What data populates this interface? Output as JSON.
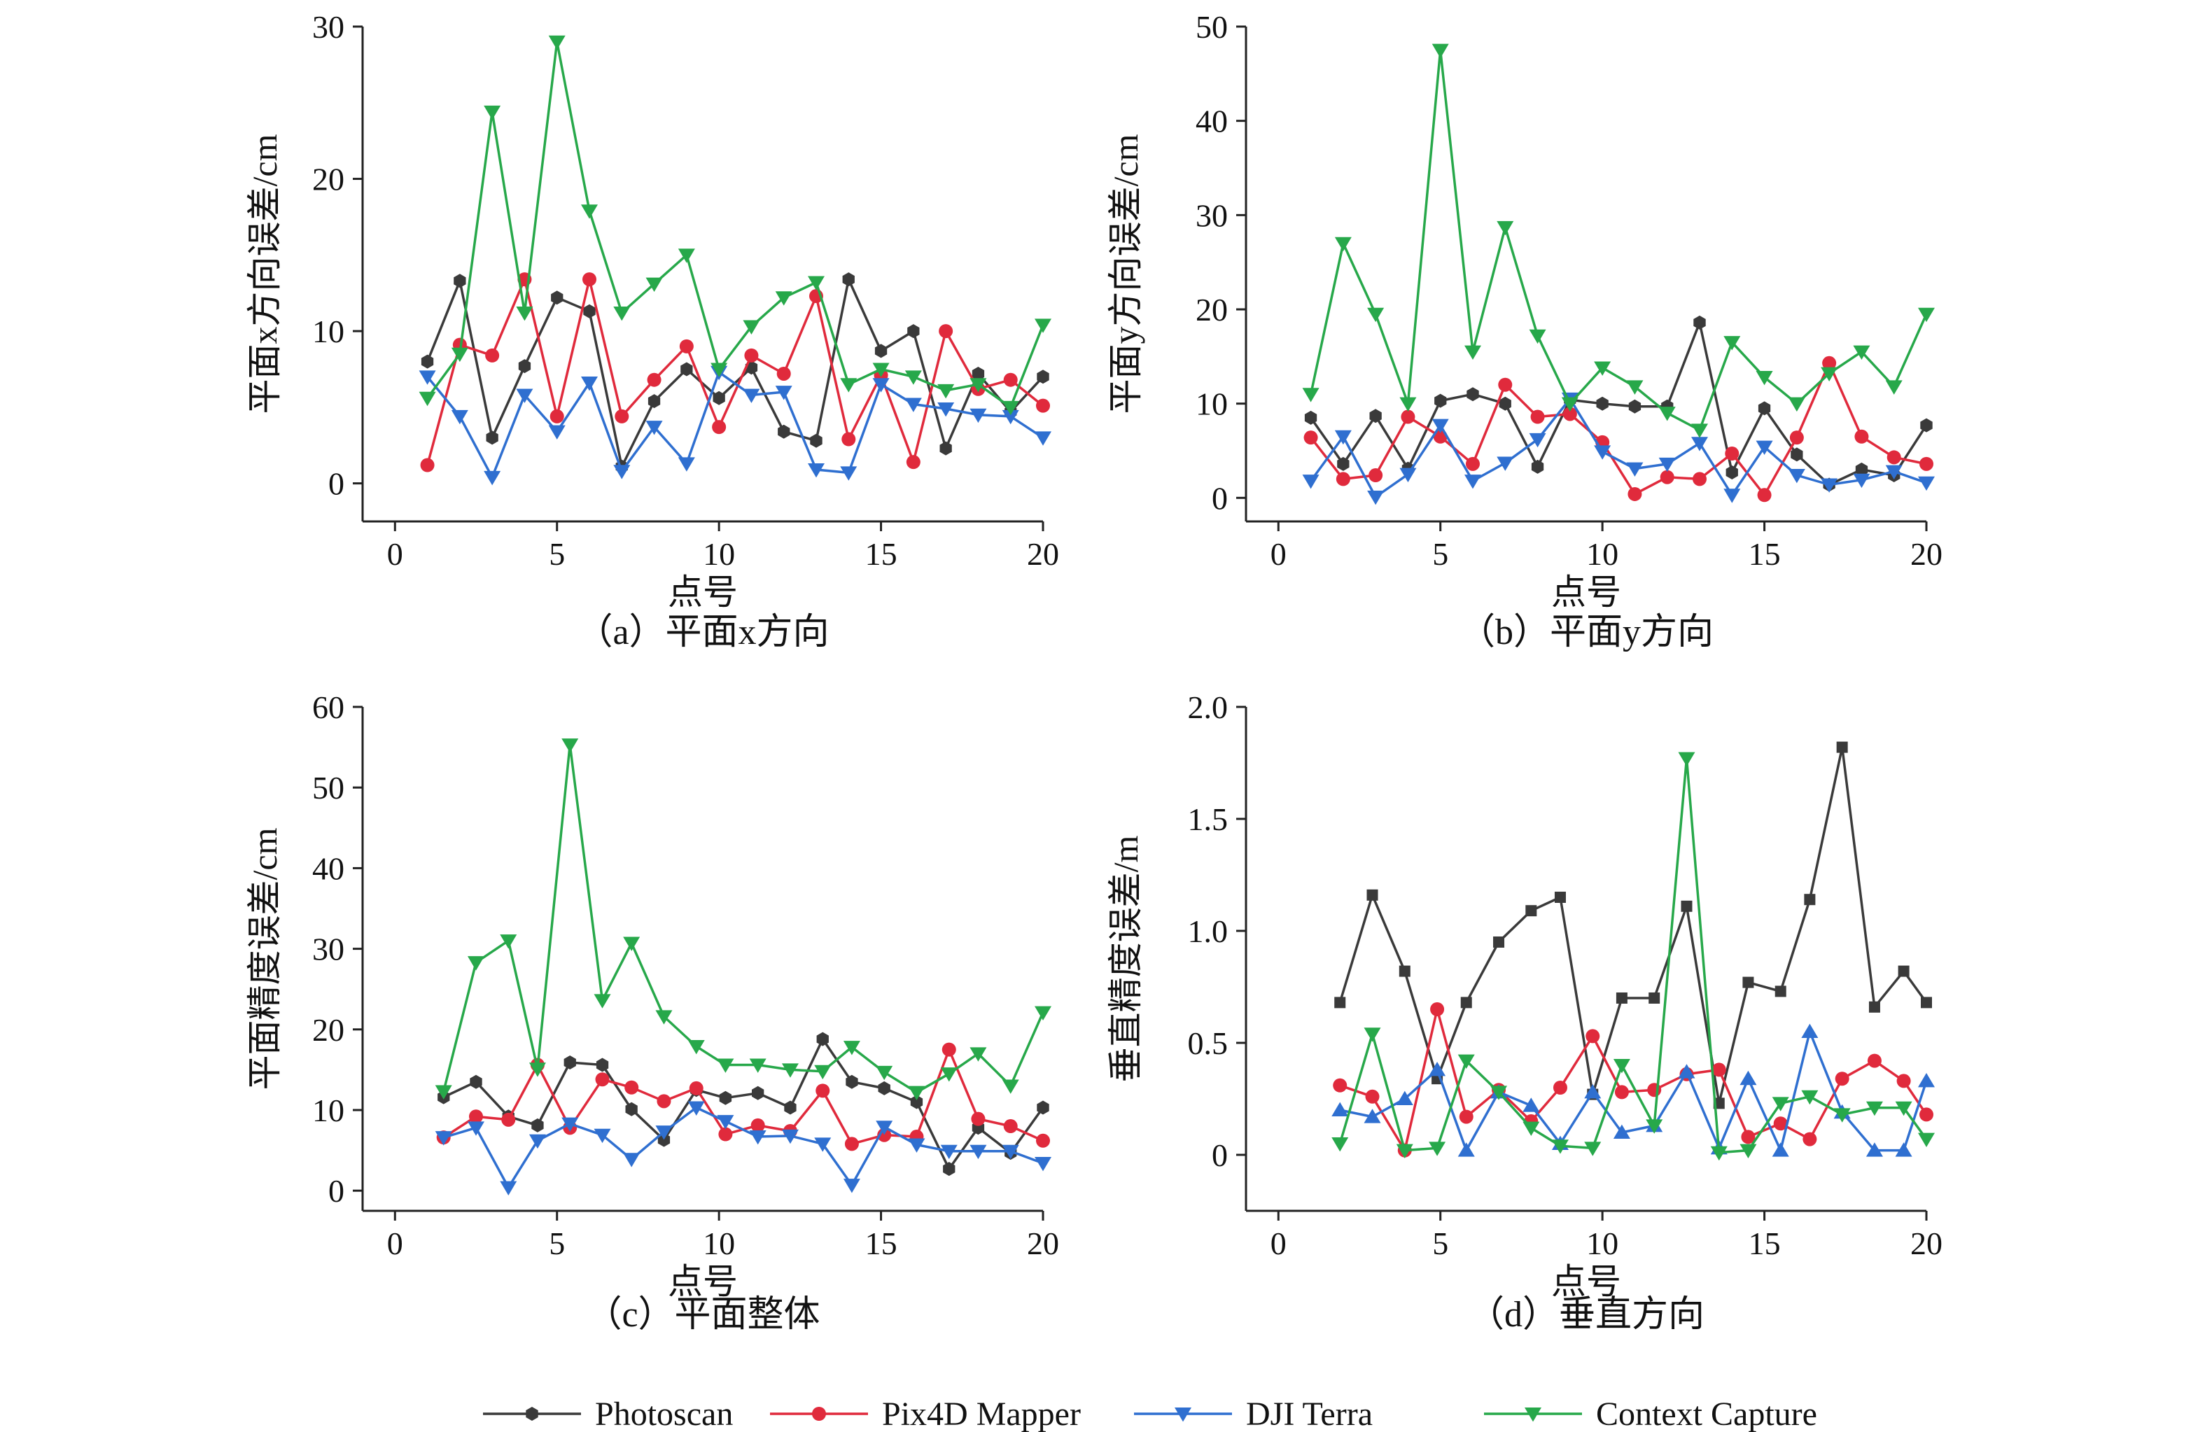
{
  "chart_data": [
    {
      "type": "line",
      "caption": "（a）平面x方向",
      "xlabel": "点号",
      "ylabel": "平面x方向误差/cm",
      "xlim": [
        -1,
        20
      ],
      "ylim": [
        -2.5,
        30
      ],
      "xticks": [
        0,
        5,
        10,
        15,
        20
      ],
      "yticks": [
        0,
        10,
        20,
        30
      ],
      "x": [
        1,
        2,
        3,
        4,
        5,
        6,
        7,
        8,
        9,
        10,
        11,
        12,
        13,
        14,
        15,
        16,
        17,
        18,
        19,
        20
      ],
      "series": [
        {
          "name": "Photoscan",
          "values": [
            8.0,
            13.3,
            3.0,
            7.7,
            12.2,
            11.3,
            1.1,
            5.4,
            7.5,
            5.6,
            7.6,
            3.4,
            2.8,
            13.4,
            8.7,
            10.0,
            2.3,
            7.2,
            4.7,
            7.0
          ]
        },
        {
          "name": "Pix4D Mapper",
          "values": [
            1.2,
            9.1,
            8.4,
            13.4,
            4.4,
            13.4,
            4.4,
            6.8,
            9.0,
            3.7,
            8.4,
            7.2,
            12.3,
            2.9,
            7.1,
            1.4,
            10.0,
            6.2,
            6.8,
            5.1
          ]
        },
        {
          "name": "DJI Terra",
          "values": [
            7.0,
            4.4,
            0.4,
            5.8,
            3.4,
            6.6,
            0.8,
            3.7,
            1.3,
            7.3,
            5.8,
            6.0,
            0.9,
            0.7,
            6.5,
            5.2,
            4.9,
            4.5,
            4.4,
            3.0
          ]
        },
        {
          "name": "Context Capture",
          "values": [
            5.6,
            8.5,
            24.4,
            11.2,
            29.0,
            17.9,
            11.2,
            13.1,
            15.0,
            7.5,
            10.3,
            12.2,
            13.2,
            6.5,
            7.5,
            7.0,
            6.1,
            6.5,
            5.0,
            10.4
          ]
        }
      ]
    },
    {
      "type": "line",
      "caption": "（b）平面y方向",
      "xlabel": "点号",
      "ylabel": "平面y方向误差/cm",
      "xlim": [
        -1,
        20
      ],
      "ylim": [
        -2.5,
        50
      ],
      "xticks": [
        0,
        5,
        10,
        15,
        20
      ],
      "yticks": [
        0,
        10,
        20,
        30,
        40,
        50
      ],
      "x": [
        1,
        2,
        3,
        4,
        5,
        6,
        7,
        8,
        9,
        10,
        11,
        12,
        13,
        14,
        15,
        16,
        17,
        18,
        19,
        20
      ],
      "series": [
        {
          "name": "Photoscan",
          "values": [
            8.5,
            3.6,
            8.7,
            3.1,
            10.3,
            11.0,
            10.0,
            3.3,
            10.4,
            10.0,
            9.7,
            9.7,
            18.6,
            2.7,
            9.5,
            4.6,
            1.4,
            3.0,
            2.4,
            7.7
          ]
        },
        {
          "name": "Pix4D Mapper",
          "values": [
            6.4,
            2.0,
            2.4,
            8.6,
            6.5,
            3.6,
            12.0,
            8.6,
            8.9,
            5.9,
            0.4,
            2.2,
            2.0,
            4.7,
            0.3,
            6.4,
            14.3,
            6.5,
            4.3,
            3.6
          ]
        },
        {
          "name": "DJI Terra",
          "values": [
            1.8,
            6.5,
            0.1,
            2.5,
            7.7,
            1.8,
            3.7,
            6.2,
            10.5,
            4.9,
            3.1,
            3.6,
            5.8,
            0.3,
            5.4,
            2.4,
            1.4,
            1.9,
            2.8,
            1.6
          ]
        },
        {
          "name": "Context Capture",
          "values": [
            11.0,
            27.0,
            19.5,
            10.0,
            47.5,
            15.5,
            28.7,
            17.2,
            10.0,
            13.8,
            11.8,
            9.0,
            7.2,
            16.5,
            12.8,
            10.0,
            13.2,
            15.5,
            11.8,
            19.5
          ]
        }
      ]
    },
    {
      "type": "line",
      "caption": "（c）平面整体",
      "xlabel": "点号",
      "ylabel": "平面精度误差/cm",
      "xlim": [
        -1,
        20
      ],
      "ylim": [
        -2.5,
        60
      ],
      "xticks": [
        0,
        5,
        10,
        15,
        20
      ],
      "yticks": [
        0,
        10,
        20,
        30,
        40,
        50,
        60
      ],
      "x": [
        1.5,
        2.5,
        3.5,
        4.4,
        5.4,
        6.4,
        7.3,
        8.3,
        9.3,
        10.2,
        11.2,
        12.2,
        13.2,
        14.1,
        15.1,
        16.1,
        17.1,
        18.0,
        19.0,
        20.0
      ],
      "series": [
        {
          "name": "Photoscan",
          "values": [
            11.6,
            13.5,
            9.2,
            8.1,
            15.9,
            15.6,
            10.1,
            6.3,
            12.5,
            11.5,
            12.1,
            10.3,
            18.8,
            13.5,
            12.7,
            11.0,
            2.7,
            7.8,
            4.7,
            10.3
          ]
        },
        {
          "name": "Pix4D Mapper",
          "values": [
            6.6,
            9.2,
            8.8,
            15.6,
            7.8,
            13.8,
            12.8,
            11.1,
            12.7,
            7.0,
            8.1,
            7.4,
            12.4,
            5.8,
            6.9,
            6.7,
            17.5,
            8.9,
            8.0,
            6.2
          ]
        },
        {
          "name": "DJI Terra",
          "values": [
            6.6,
            7.8,
            0.4,
            6.2,
            8.3,
            6.9,
            3.9,
            7.3,
            10.3,
            8.6,
            6.7,
            6.8,
            5.8,
            0.7,
            7.9,
            5.7,
            4.9,
            4.9,
            4.9,
            3.4
          ]
        },
        {
          "name": "Context Capture",
          "values": [
            12.3,
            28.3,
            31.0,
            15.1,
            55.3,
            23.6,
            30.7,
            21.6,
            17.9,
            15.6,
            15.6,
            15.0,
            14.8,
            17.8,
            14.7,
            12.2,
            14.5,
            17.0,
            13.0,
            22.1
          ]
        }
      ]
    },
    {
      "type": "line",
      "caption": "（d）垂直方向",
      "xlabel": "点号",
      "ylabel": "垂直精度误差/m",
      "xlim": [
        -1,
        20
      ],
      "ylim": [
        -0.25,
        2.0
      ],
      "xticks": [
        0,
        5,
        10,
        15,
        20
      ],
      "yticks": [
        0,
        0.5,
        1.0,
        1.5,
        2.0
      ],
      "ytick_labels": [
        "0",
        "0.5",
        "1.0",
        "1.5",
        "2.0"
      ],
      "x": [
        1.9,
        2.9,
        3.9,
        4.9,
        5.8,
        6.8,
        7.8,
        8.7,
        9.7,
        10.6,
        11.6,
        12.6,
        13.6,
        14.5,
        15.5,
        16.4,
        17.4,
        18.4,
        19.3,
        20.0
      ],
      "series": [
        {
          "name": "Photoscan",
          "values": [
            0.68,
            1.16,
            0.82,
            0.34,
            0.68,
            0.95,
            1.09,
            1.15,
            0.27,
            0.7,
            0.7,
            1.11,
            0.23,
            0.77,
            0.73,
            1.14,
            1.82,
            0.66,
            0.82,
            0.68
          ]
        },
        {
          "name": "Pix4D Mapper",
          "values": [
            0.31,
            0.26,
            0.02,
            0.65,
            0.17,
            0.29,
            0.15,
            0.3,
            0.53,
            0.28,
            0.29,
            0.36,
            0.38,
            0.08,
            0.14,
            0.07,
            0.34,
            0.42,
            0.33,
            0.18
          ]
        },
        {
          "name": "DJI Terra",
          "values": [
            0.2,
            0.17,
            0.25,
            0.38,
            0.02,
            0.28,
            0.22,
            0.05,
            0.28,
            0.1,
            0.13,
            0.37,
            0.03,
            0.34,
            0.02,
            0.55,
            0.19,
            0.02,
            0.02,
            0.33
          ]
        },
        {
          "name": "Context Capture",
          "values": [
            0.05,
            0.54,
            0.02,
            0.03,
            0.42,
            0.28,
            0.12,
            0.04,
            0.03,
            0.4,
            0.13,
            1.77,
            0.01,
            0.02,
            0.23,
            0.26,
            0.18,
            0.21,
            0.21,
            0.07
          ]
        }
      ]
    }
  ],
  "legend": [
    {
      "name": "Photoscan",
      "color": "#3a3a3a",
      "marker": "hexagon"
    },
    {
      "name": "Pix4D Mapper",
      "color": "#e02a3c",
      "marker": "circle"
    },
    {
      "name": "DJI Terra",
      "color": "#2f6fd0",
      "marker": "triangle-down"
    },
    {
      "name": "Context Capture",
      "color": "#27a84a",
      "marker": "triangle-down"
    }
  ],
  "series_colors": {
    "Photoscan": "#3a3a3a",
    "Pix4D Mapper": "#e02a3c",
    "DJI Terra": "#2f6fd0",
    "Context Capture": "#27a84a"
  }
}
